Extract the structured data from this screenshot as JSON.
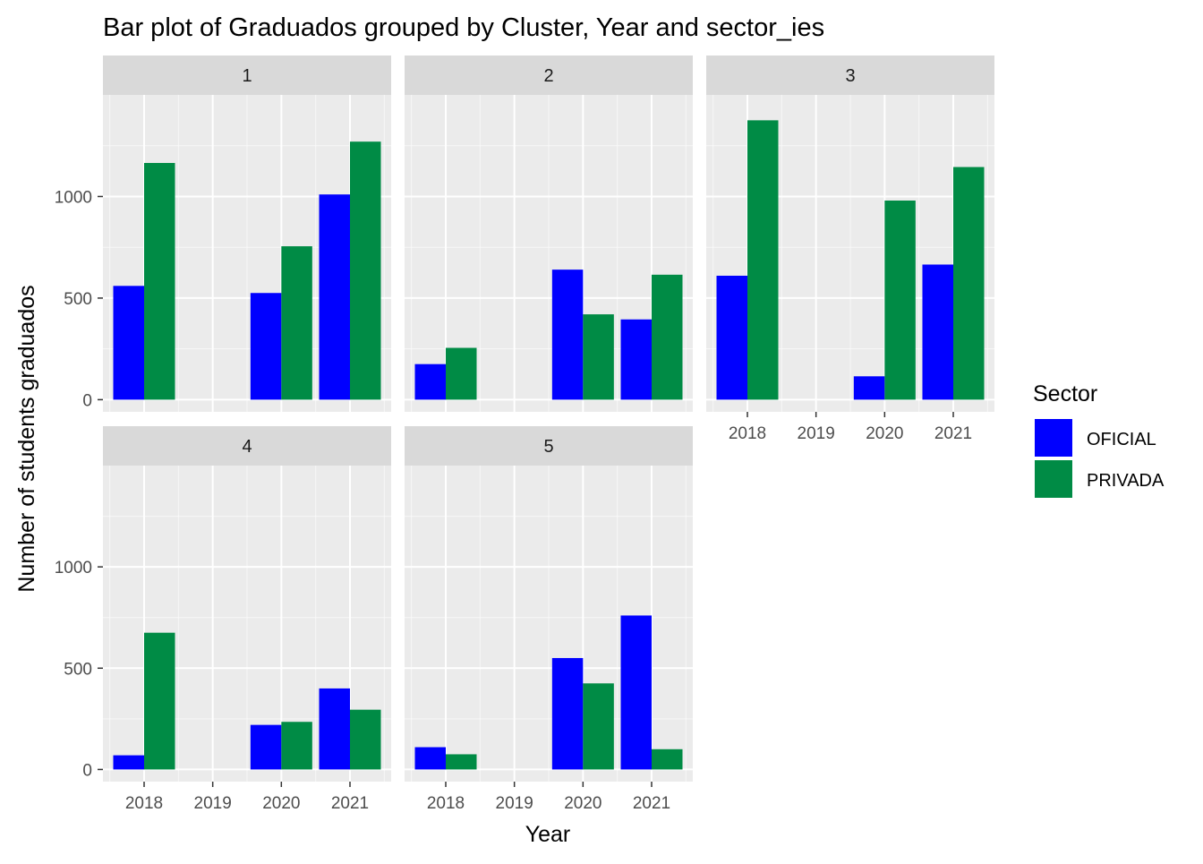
{
  "chart_data": {
    "type": "bar",
    "title": "Bar plot of Graduados grouped by Cluster, Year and sector_ies",
    "xlabel": "Year",
    "ylabel": "Number of students graduados",
    "categories": [
      "2018",
      "2019",
      "2020",
      "2021"
    ],
    "yticks": [
      0,
      500,
      1000
    ],
    "ylim": [
      -60,
      1500
    ],
    "grid": true,
    "legend": {
      "title": "Sector",
      "placement": "right",
      "entries": [
        {
          "name": "OFICIAL",
          "color": "#0000ff"
        },
        {
          "name": "PRIVADA",
          "color": "#008b45"
        }
      ]
    },
    "colors": {
      "panel_bg": "#ebebeb",
      "strip_bg": "#d9d9d9",
      "grid": "#ffffff"
    },
    "facets": [
      {
        "label": "1",
        "series": [
          {
            "name": "OFICIAL",
            "values": [
              560,
              null,
              525,
              1010
            ]
          },
          {
            "name": "PRIVADA",
            "values": [
              1165,
              null,
              755,
              1270
            ]
          }
        ]
      },
      {
        "label": "2",
        "series": [
          {
            "name": "OFICIAL",
            "values": [
              175,
              null,
              640,
              395
            ]
          },
          {
            "name": "PRIVADA",
            "values": [
              255,
              null,
              420,
              615
            ]
          }
        ]
      },
      {
        "label": "3",
        "series": [
          {
            "name": "OFICIAL",
            "values": [
              610,
              null,
              115,
              665
            ]
          },
          {
            "name": "PRIVADA",
            "values": [
              1375,
              null,
              980,
              1145
            ]
          }
        ]
      },
      {
        "label": "4",
        "series": [
          {
            "name": "OFICIAL",
            "values": [
              70,
              null,
              220,
              400
            ]
          },
          {
            "name": "PRIVADA",
            "values": [
              675,
              null,
              235,
              295
            ]
          }
        ]
      },
      {
        "label": "5",
        "series": [
          {
            "name": "OFICIAL",
            "values": [
              110,
              null,
              550,
              760
            ]
          },
          {
            "name": "PRIVADA",
            "values": [
              75,
              null,
              425,
              100
            ]
          }
        ]
      }
    ]
  }
}
